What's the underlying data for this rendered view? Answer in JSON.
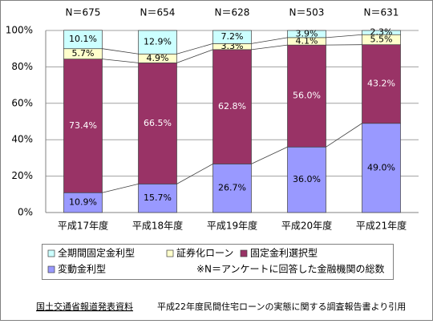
{
  "chart_data": {
    "type": "stacked-bar",
    "annotations": [
      "N＝675",
      "N＝654",
      "N＝628",
      "N＝503",
      "N＝631"
    ],
    "categories": [
      "平成17年度",
      "平成18年度",
      "平成19年度",
      "平成20年度",
      "平成21年度"
    ],
    "series": [
      {
        "name": "変動金利型",
        "color": "#9999ff",
        "values": [
          10.9,
          15.7,
          26.7,
          36.0,
          49.0
        ],
        "value_labels": [
          "10.9%",
          "15.7%",
          "26.7%",
          "36.0%",
          "49.0%"
        ]
      },
      {
        "name": "固定金利選択型",
        "color": "#993366",
        "values": [
          73.4,
          66.5,
          62.8,
          56.0,
          43.2
        ],
        "value_labels": [
          "73.4%",
          "66.5%",
          "62.8%",
          "56.0%",
          "43.2%"
        ]
      },
      {
        "name": "証券化ローン",
        "color": "#ffffcc",
        "values": [
          5.7,
          4.9,
          3.3,
          4.1,
          5.5
        ],
        "value_labels": [
          "5.7%",
          "4.9%",
          "3.3%",
          "4.1%",
          "5.5%"
        ]
      },
      {
        "name": "全期間固定金利型",
        "color": "#ccffff",
        "values": [
          10.1,
          12.9,
          7.2,
          3.9,
          2.3
        ],
        "value_labels": [
          "10.1%",
          "12.9%",
          "7.2%",
          "3.9%",
          "2.3%"
        ]
      }
    ],
    "ylim": [
      0,
      100
    ],
    "yticks": [
      {
        "value": 0,
        "label": "0%"
      },
      {
        "value": 20,
        "label": "20%"
      },
      {
        "value": 40,
        "label": "40%"
      },
      {
        "value": 60,
        "label": "60%"
      },
      {
        "value": 80,
        "label": "80%"
      },
      {
        "value": 100,
        "label": "100%"
      }
    ],
    "grid": true,
    "legend_note": "※N＝アンケートに回答した金融機関の総数",
    "source_link": "国土交通省報道発表資料",
    "source_note": "平成22年度民間住宅ローンの実態に関する調査報告書より引用"
  }
}
